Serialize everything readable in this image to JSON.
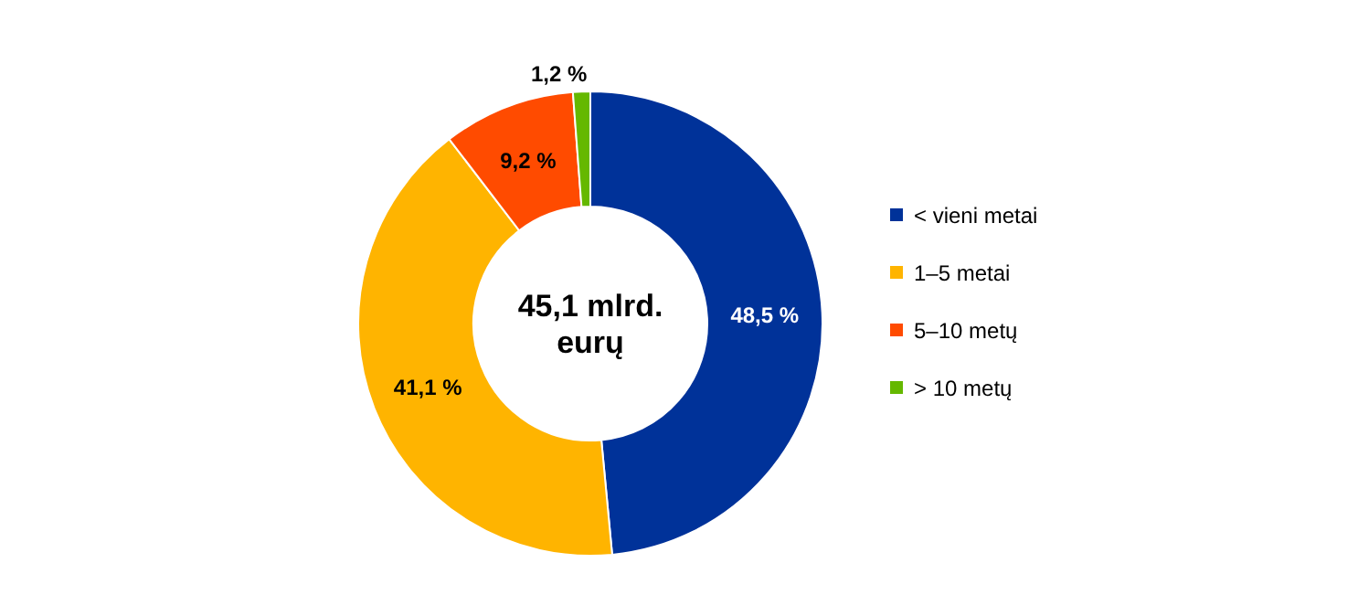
{
  "chart_data": {
    "type": "donut",
    "categories": [
      "< vieni metai",
      "1–5 metai",
      "5–10 metų",
      "> 10 metų"
    ],
    "values": [
      48.5,
      41.1,
      9.2,
      1.2
    ],
    "colors": [
      "#003299",
      "#ffb400",
      "#ff4b00",
      "#65b800"
    ],
    "value_labels": [
      "48,5 %",
      "41,1 %",
      "9,2 %",
      "1,2 %"
    ],
    "annotations": [
      "45,1 mlrd. eurų"
    ],
    "legend": "right"
  }
}
